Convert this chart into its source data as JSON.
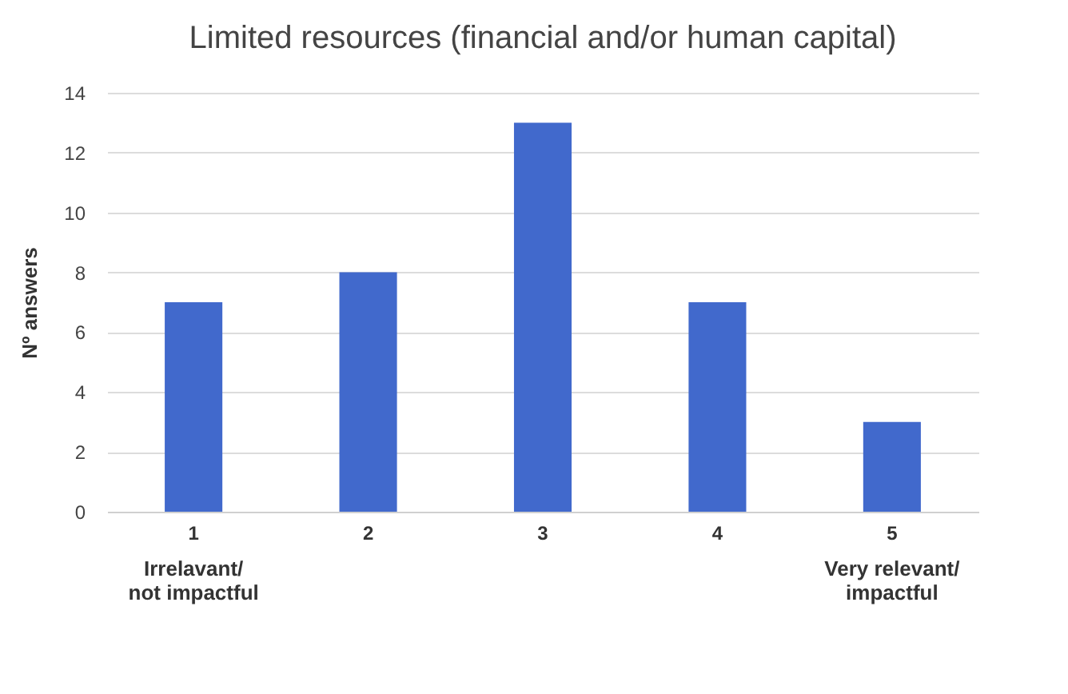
{
  "chart_data": {
    "type": "bar",
    "title": "Limited resources (financial and/or human capital)",
    "ylabel": "Nº answers",
    "categories": [
      "1",
      "2",
      "3",
      "4",
      "5"
    ],
    "values": [
      7,
      8,
      13,
      7,
      3
    ],
    "color": "#4169cc",
    "ylim": [
      0,
      14
    ],
    "yticks": [
      0,
      2,
      4,
      6,
      8,
      10,
      12,
      14
    ],
    "grid": "y",
    "annotations": [
      "Irrelavant/\nnot impactful",
      "Very relevant/\nimpactful"
    ]
  }
}
